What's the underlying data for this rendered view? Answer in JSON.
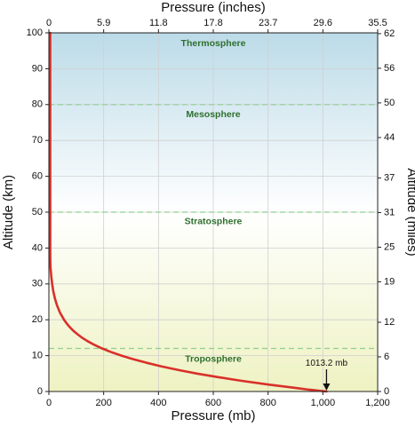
{
  "chart_data": {
    "type": "line",
    "xlabel_bottom": "Pressure (mb)",
    "xlabel_top": "Pressure (inches)",
    "ylabel_left": "Altitude (km)",
    "ylabel_right": "Altitude (miles)",
    "xlim": [
      0,
      1200
    ],
    "ylim": [
      0,
      100
    ],
    "x_ticks_bottom": [
      "0",
      "200",
      "400",
      "600",
      "800",
      "1,000",
      "1,200"
    ],
    "x_ticks_top": [
      "0",
      "5.9",
      "11.8",
      "17.8",
      "23.7",
      "29.6",
      "35.5"
    ],
    "y_ticks_left": [
      "0",
      "10",
      "20",
      "30",
      "40",
      "50",
      "60",
      "70",
      "80",
      "90",
      "100"
    ],
    "y_ticks_right": [
      {
        "label": "0",
        "km": 0
      },
      {
        "label": "6",
        "km": 9.66
      },
      {
        "label": "12",
        "km": 19.31
      },
      {
        "label": "19",
        "km": 30.58
      },
      {
        "label": "25",
        "km": 40.23
      },
      {
        "label": "31",
        "km": 49.89
      },
      {
        "label": "37",
        "km": 59.55
      },
      {
        "label": "44",
        "km": 70.81
      },
      {
        "label": "50",
        "km": 80.47
      },
      {
        "label": "56",
        "km": 90.12
      },
      {
        "label": "62",
        "km": 99.78
      }
    ],
    "layers": [
      {
        "name": "Troposphere",
        "label_y": 9
      },
      {
        "name": "Stratosphere",
        "label_y": 47.3
      },
      {
        "name": "Mesosphere",
        "label_y": 77.2
      },
      {
        "name": "Thermosphere",
        "label_y": 97
      }
    ],
    "boundaries": [
      12,
      50,
      80
    ],
    "series": [
      {
        "points": [
          [
            1013.25,
            0
          ],
          [
            950,
            0.5
          ],
          [
            899,
            1
          ],
          [
            795,
            2
          ],
          [
            701,
            3
          ],
          [
            617,
            4
          ],
          [
            540,
            5
          ],
          [
            472,
            6
          ],
          [
            411,
            7
          ],
          [
            357,
            8
          ],
          [
            308,
            9
          ],
          [
            265,
            10
          ],
          [
            227,
            11
          ],
          [
            194,
            12
          ],
          [
            166,
            13
          ],
          [
            142,
            14
          ],
          [
            121,
            15
          ],
          [
            104,
            16
          ],
          [
            88.5,
            17
          ],
          [
            75.6,
            18
          ],
          [
            64.7,
            19
          ],
          [
            55.3,
            20
          ],
          [
            40.5,
            22
          ],
          [
            29.7,
            24
          ],
          [
            21.8,
            26
          ],
          [
            16,
            28
          ],
          [
            12,
            30
          ],
          [
            8.9,
            32
          ],
          [
            6.6,
            34
          ],
          [
            5.7,
            35
          ],
          [
            3.7,
            38
          ],
          [
            2.9,
            40
          ],
          [
            1.5,
            45
          ],
          [
            0.8,
            50
          ],
          [
            0.4,
            55
          ],
          [
            0.2,
            60
          ],
          [
            0.1,
            65
          ],
          [
            0.05,
            70
          ],
          [
            0.03,
            75
          ],
          [
            0.01,
            80
          ],
          [
            0.003,
            85
          ],
          [
            0.001,
            90
          ],
          [
            0.0003,
            95
          ],
          [
            0.0001,
            100
          ]
        ]
      }
    ],
    "annotation": {
      "text": "1013.2 mb",
      "x": 1013.25,
      "y": 0
    },
    "colors": {
      "curve": "#d9302a",
      "boundary": "#8fcf8f",
      "layer_label": "#2f6f2f",
      "bg_top": "#bcdbe8",
      "bg_mid": "#ffffff",
      "bg_bottom": "#eef2c2",
      "grid": "#d0d0d0"
    }
  }
}
